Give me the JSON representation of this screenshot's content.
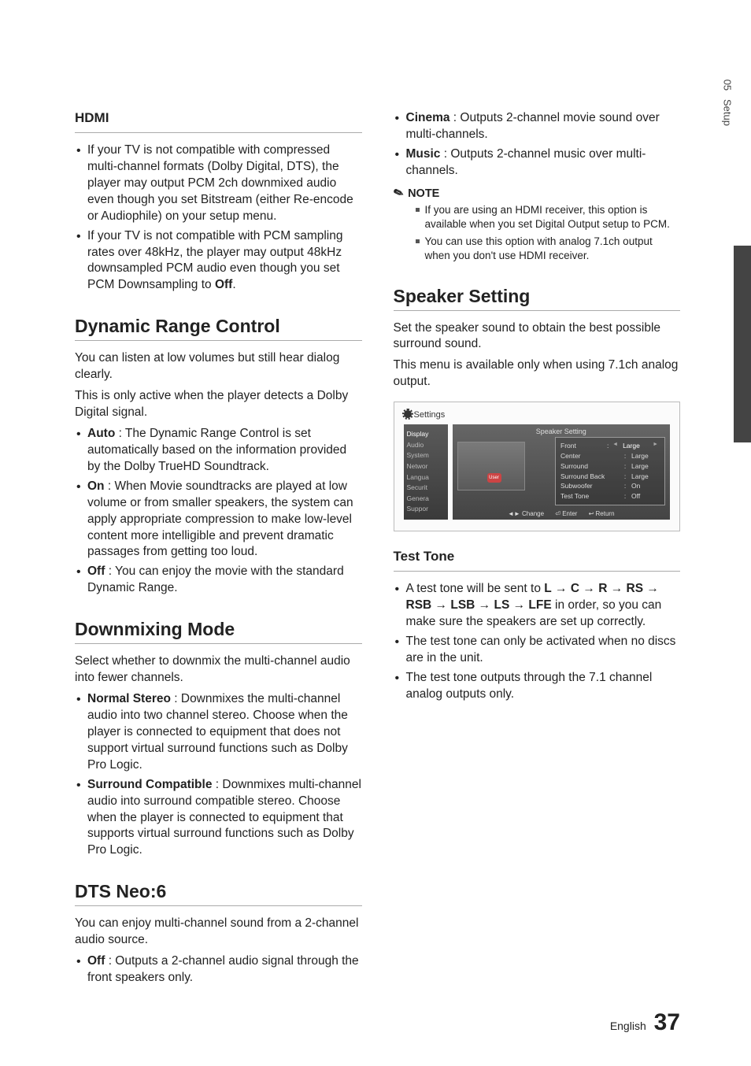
{
  "sideTab": {
    "chapter": "05",
    "title": "Setup"
  },
  "left": {
    "hdmi": {
      "heading": "HDMI",
      "bullets": [
        "If your TV is not compatible with compressed multi-channel formats (Dolby Digital, DTS), the player may output PCM 2ch downmixed audio even though you set Bitstream (either Re-encode or Audiophile) on your setup menu.",
        "If your TV is not compatible with PCM sampling rates over 48kHz, the player may output 48kHz downsampled PCM audio even though you set PCM Downsampling to "
      ],
      "off": "Off"
    },
    "drc": {
      "heading": "Dynamic Range Control",
      "p1": "You can listen at low volumes but still hear dialog clearly.",
      "p2": "This is only active when the player detects a Dolby Digital signal.",
      "items": [
        {
          "k": "Auto",
          "v": " : The Dynamic Range Control is set automatically based on the information provided by the Dolby TrueHD Soundtrack."
        },
        {
          "k": "On",
          "v": " : When Movie soundtracks are played at low volume or from smaller speakers, the system can apply appropriate compression to make low-level content more intelligible and prevent dramatic passages from getting too loud."
        },
        {
          "k": "Off",
          "v": " : You can enjoy the movie with the standard Dynamic Range."
        }
      ]
    },
    "dm": {
      "heading": "Downmixing Mode",
      "p": "Select whether to downmix the multi-channel audio into fewer channels.",
      "items": [
        {
          "k": "Normal Stereo",
          "v": " : Downmixes the multi-channel audio into two channel stereo. Choose when the player is connected to equipment that does not support virtual surround functions such as Dolby Pro Logic."
        },
        {
          "k": "Surround Compatible",
          "v": " : Downmixes multi-channel audio into surround compatible stereo. Choose when the player is connected to equipment that supports virtual surround functions such as Dolby Pro Logic."
        }
      ]
    },
    "dts": {
      "heading": "DTS Neo:6",
      "p": "You can enjoy multi-channel sound from a 2-channel audio source.",
      "items": [
        {
          "k": "Off",
          "v": " : Outputs a 2-channel audio signal through the front speakers only."
        }
      ]
    }
  },
  "right": {
    "top": {
      "items": [
        {
          "k": "Cinema",
          "v": " : Outputs 2-channel movie sound over multi-channels."
        },
        {
          "k": "Music",
          "v": " : Outputs 2-channel music over multi-channels."
        }
      ],
      "noteLabel": "NOTE",
      "notes": [
        "If you are using an HDMI receiver, this option is available when you set Digital Output setup to PCM.",
        "You can use this option with analog 7.1ch output when you don't use HDMI receiver."
      ]
    },
    "speaker": {
      "heading": "Speaker Setting",
      "p1": "Set the speaker sound to obtain the best possible surround sound.",
      "p2": "This menu is available only when using 7.1ch analog output."
    },
    "panel": {
      "headLabel": "Settings",
      "sidebar": [
        "Display",
        "Audio",
        "System",
        "Networ",
        "Langua",
        "Securit",
        "Genera",
        "Suppor"
      ],
      "title": "Speaker Setting",
      "user": "User",
      "rows": [
        {
          "k": "Front",
          "v": "Large",
          "hl": true
        },
        {
          "k": "Center",
          "v": "Large"
        },
        {
          "k": "Surround",
          "v": "Large"
        },
        {
          "k": "Surround Back",
          "v": "Large"
        },
        {
          "k": "Subwoofer",
          "v": "On"
        },
        {
          "k": "Test Tone",
          "v": "Off"
        }
      ],
      "foot": {
        "change": "◄► Change",
        "enter": "⏎ Enter",
        "ret": "↩ Return"
      }
    },
    "test": {
      "heading": "Test Tone",
      "seq": {
        "pre": "A test tone will be sent to ",
        "parts": [
          "L",
          "C",
          "R",
          "RS",
          "RSB",
          "LSB",
          "LS",
          "LFE"
        ],
        "post": " in order, so you can make sure the speakers are set up correctly."
      },
      "b2": "The test tone can only be activated when no discs are in the unit.",
      "b3": "The test tone outputs through the 7.1 channel analog outputs only."
    }
  },
  "footer": {
    "lang": "English",
    "page": "37"
  }
}
